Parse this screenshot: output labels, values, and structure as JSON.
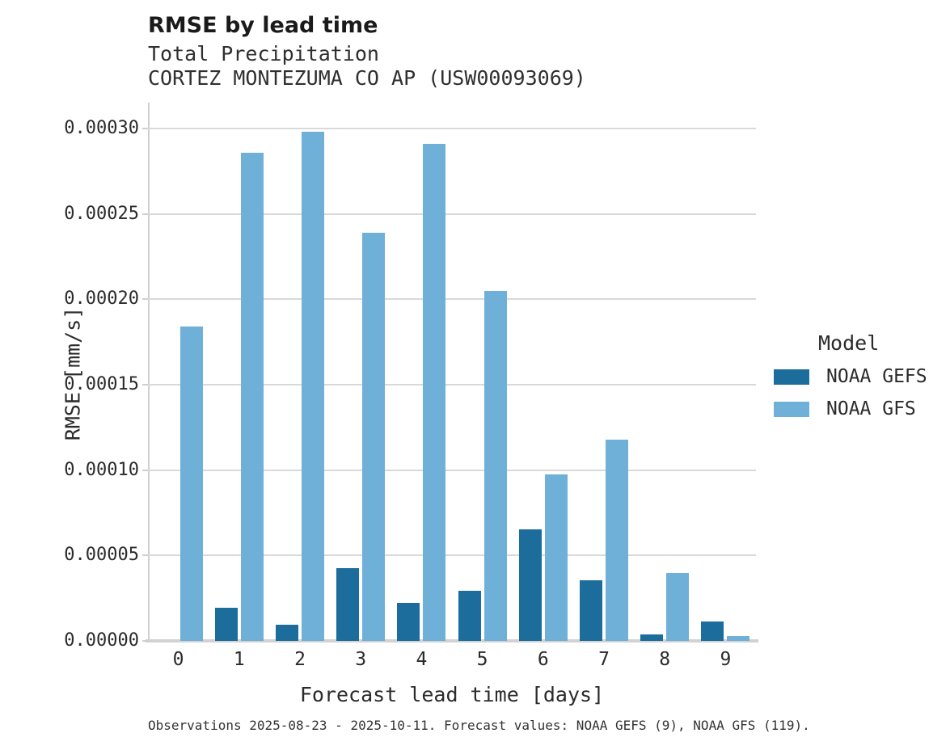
{
  "header": {
    "title": "RMSE by lead time",
    "subtitle": "Total Precipitation",
    "station": "CORTEZ MONTEZUMA CO AP (USW00093069)"
  },
  "caption": "Observations 2025-08-23 - 2025-10-11. Forecast values: NOAA GEFS (9), NOAA GFS (119).",
  "chart_data": {
    "type": "bar",
    "title": "RMSE by lead time",
    "xlabel": "Forecast lead time [days]",
    "ylabel": "RMSE [mm/s]",
    "categories": [
      "0",
      "1",
      "2",
      "3",
      "4",
      "5",
      "6",
      "7",
      "8",
      "9"
    ],
    "series": [
      {
        "name": "NOAA GEFS",
        "color": "#1c6c9c",
        "values": [
          null,
          1.95e-05,
          9.5e-06,
          4.25e-05,
          2.22e-05,
          2.92e-05,
          6.55e-05,
          3.56e-05,
          3.7e-06,
          1.15e-05
        ]
      },
      {
        "name": "NOAA GFS",
        "color": "#6fb0d8",
        "values": [
          0.000184,
          0.000286,
          0.000298,
          0.000239,
          0.000291,
          0.000205,
          9.75e-05,
          0.000118,
          3.98e-05,
          2.8e-06
        ]
      }
    ],
    "ylim": [
      0,
      0.0003
    ],
    "yticks": [
      0,
      5e-05,
      0.0001,
      0.00015,
      0.0002,
      0.00025,
      0.0003
    ],
    "ytick_format_decimals": 5,
    "grid": true,
    "legend_title": "Model",
    "legend_position": "right"
  },
  "colors": {
    "gridline": "#d9d9d9",
    "axis": "#cfcfcf",
    "baseline": "#d2d2d2"
  }
}
